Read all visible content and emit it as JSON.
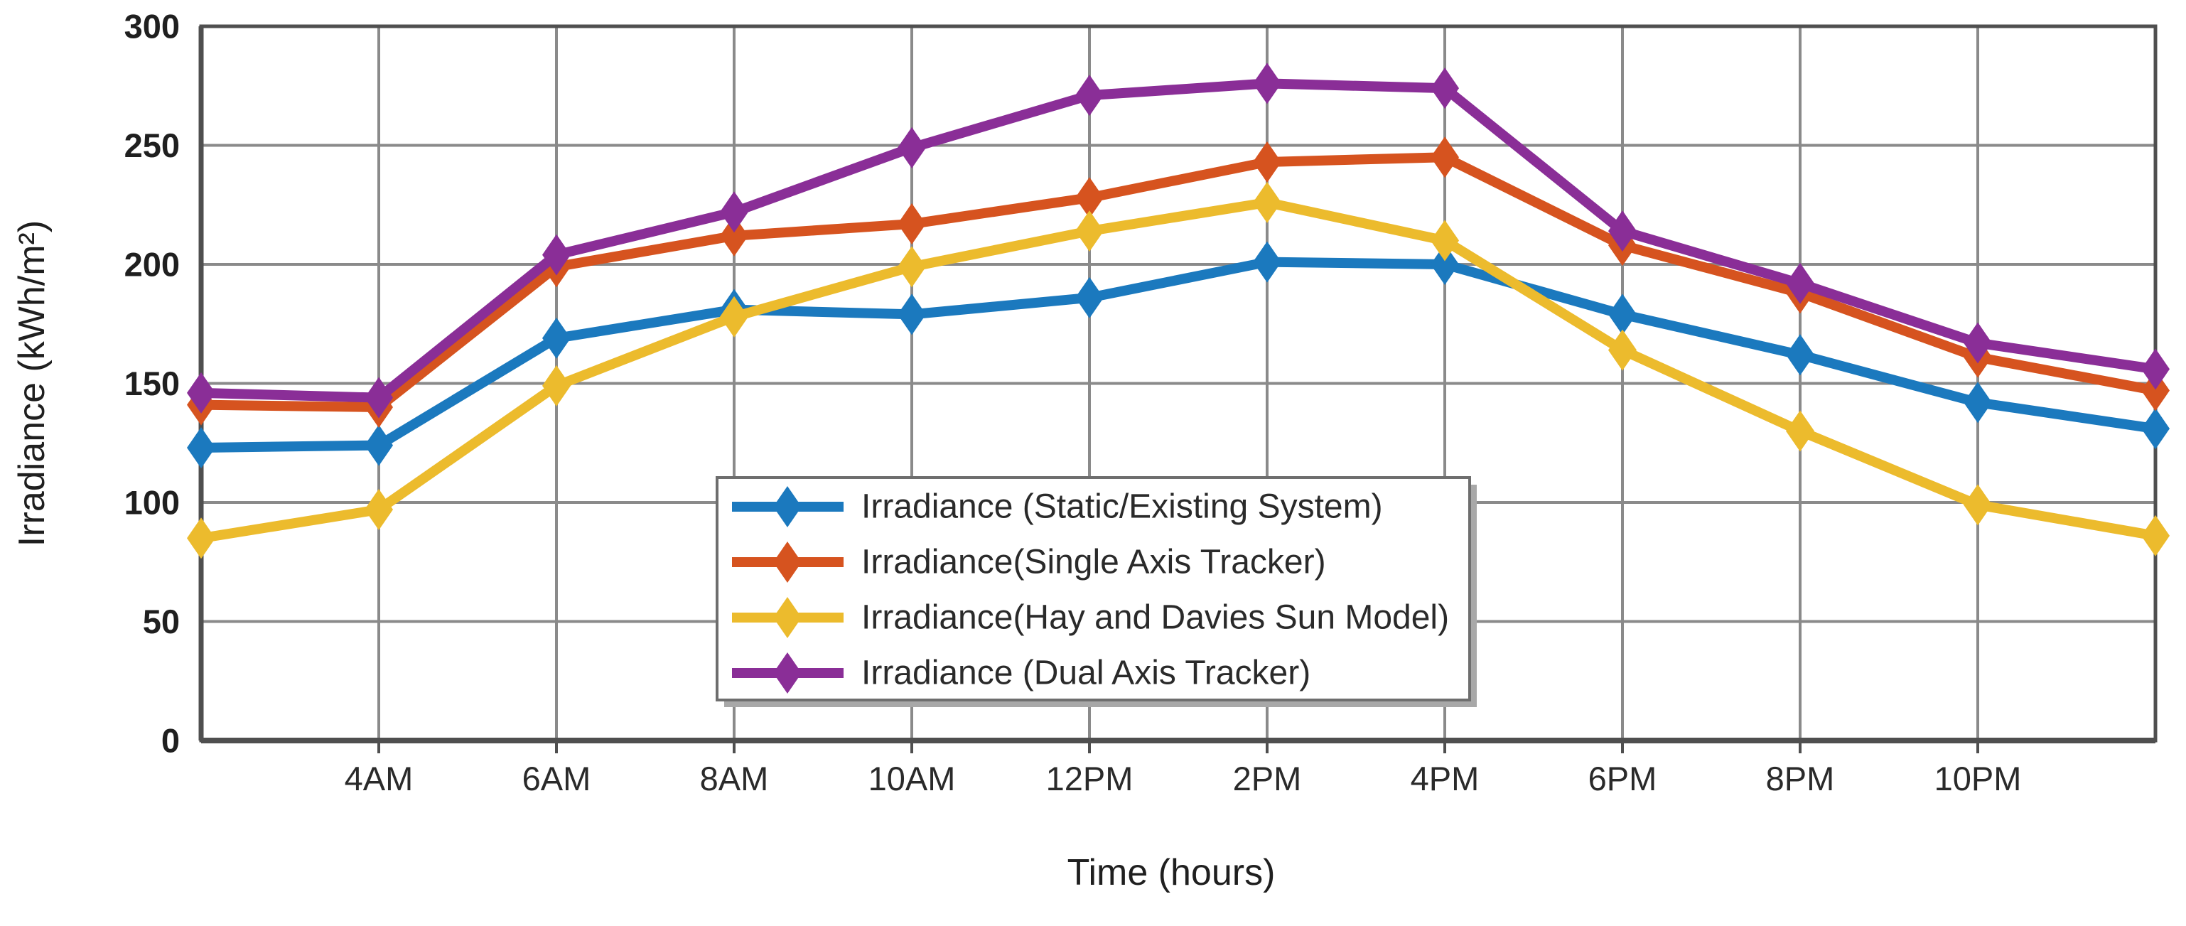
{
  "chart_data": {
    "type": "line",
    "title": "",
    "xlabel": "Time (hours)",
    "ylabel": "Irradiance (kWh/m²)",
    "ylim": [
      0,
      300
    ],
    "yticks": [
      0,
      50,
      100,
      150,
      200,
      250,
      300
    ],
    "grid": true,
    "legend_position": "inside-bottom-center",
    "x_labels": [
      "",
      "4AM",
      "6AM",
      "8AM",
      "10AM",
      "12PM",
      "2PM",
      "4PM",
      "6PM",
      "8PM",
      "10PM",
      ""
    ],
    "series": [
      {
        "name": "Irradiance (Static/Existing System)",
        "color": "#1B79BE",
        "values": [
          123,
          124,
          169,
          181,
          179,
          186,
          201,
          200,
          179,
          162,
          142,
          131
        ]
      },
      {
        "name": "Irradiance(Single Axis Tracker)",
        "color": "#D6531F",
        "values": [
          141,
          140,
          199,
          212,
          217,
          228,
          243,
          245,
          208,
          188,
          161,
          147
        ]
      },
      {
        "name": "Irradiance(Hay and Davies Sun Model)",
        "color": "#ECBB2D",
        "values": [
          85,
          97,
          149,
          178,
          199,
          214,
          226,
          210,
          164,
          130,
          99,
          86
        ]
      },
      {
        "name": "Irradiance (Dual Axis Tracker)",
        "color": "#8A2E97",
        "values": [
          146,
          144,
          204,
          222,
          249,
          271,
          276,
          274,
          214,
          192,
          167,
          156
        ]
      }
    ],
    "colors": {
      "grid": "#8a8a8a",
      "border": "#4f4f4f",
      "axis": "#4f4f4f",
      "legend_border": "#6e6e6e",
      "legend_shadow": "#a8a8a8",
      "background": "#ffffff"
    }
  }
}
